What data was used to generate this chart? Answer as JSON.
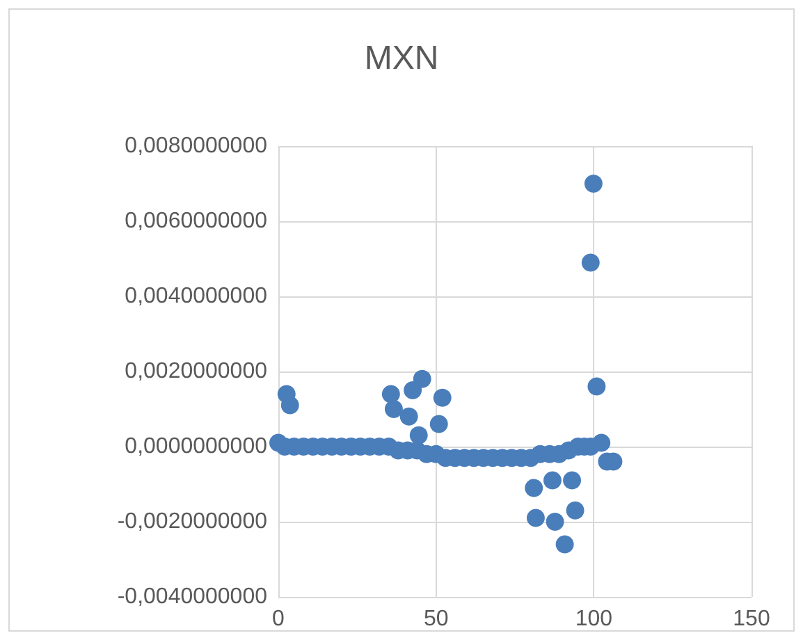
{
  "chart_data": {
    "type": "scatter",
    "title": "MXN",
    "series": [
      {
        "color": "#4a7ebb",
        "x": [
          0,
          2,
          5,
          8,
          11,
          14,
          17,
          20,
          23,
          26,
          29,
          32,
          35,
          38,
          41,
          44,
          47,
          50,
          53,
          56,
          59,
          62,
          65,
          68,
          71,
          74,
          77,
          80,
          83,
          86,
          89,
          92,
          95,
          97,
          99,
          2.6,
          3.7,
          35.7,
          36.6,
          41.4,
          42.6,
          45.6,
          44.5,
          52,
          50.9,
          99.9,
          99,
          100.9,
          102.4,
          104.2,
          106.2,
          81,
          86.9,
          93.1,
          81.6,
          87.7,
          94.1,
          90.8
        ],
        "values": [
          0.0001,
          0,
          0,
          0,
          0,
          0,
          0,
          0,
          0,
          0,
          0,
          0,
          0,
          -0.0001,
          -0.0001,
          -0.0001,
          -0.0002,
          -0.0002,
          -0.0003,
          -0.0003,
          -0.0003,
          -0.0003,
          -0.0003,
          -0.0003,
          -0.0003,
          -0.0003,
          -0.0003,
          -0.0003,
          -0.0002,
          -0.0002,
          -0.0002,
          -0.0001,
          0,
          0,
          0,
          0.0014,
          0.0011,
          0.0014,
          0.001,
          0.0008,
          0.0015,
          0.0018,
          0.0003,
          0.0013,
          0.0006,
          0.007,
          0.0049,
          0.0016,
          0.0001,
          -0.0004,
          -0.0004,
          -0.0011,
          -0.0009,
          -0.0009,
          -0.0019,
          -0.002,
          -0.0017,
          -0.0026
        ]
      }
    ],
    "xlim": [
      0,
      150
    ],
    "xticks": [
      0,
      50,
      100,
      150
    ],
    "ylim": [
      -0.004,
      0.008
    ],
    "yticks": [
      {
        "value": -0.004,
        "label": "-0,0040000000"
      },
      {
        "value": -0.002,
        "label": "-0,0020000000"
      },
      {
        "value": 0,
        "label": "0,0000000000"
      },
      {
        "value": 0.002,
        "label": "0,0020000000"
      },
      {
        "value": 0.004,
        "label": "0,0040000000"
      },
      {
        "value": 0.006,
        "label": "0,0060000000"
      },
      {
        "value": 0.008,
        "label": "0,0080000000"
      }
    ],
    "grid": true,
    "marker": "circle"
  }
}
